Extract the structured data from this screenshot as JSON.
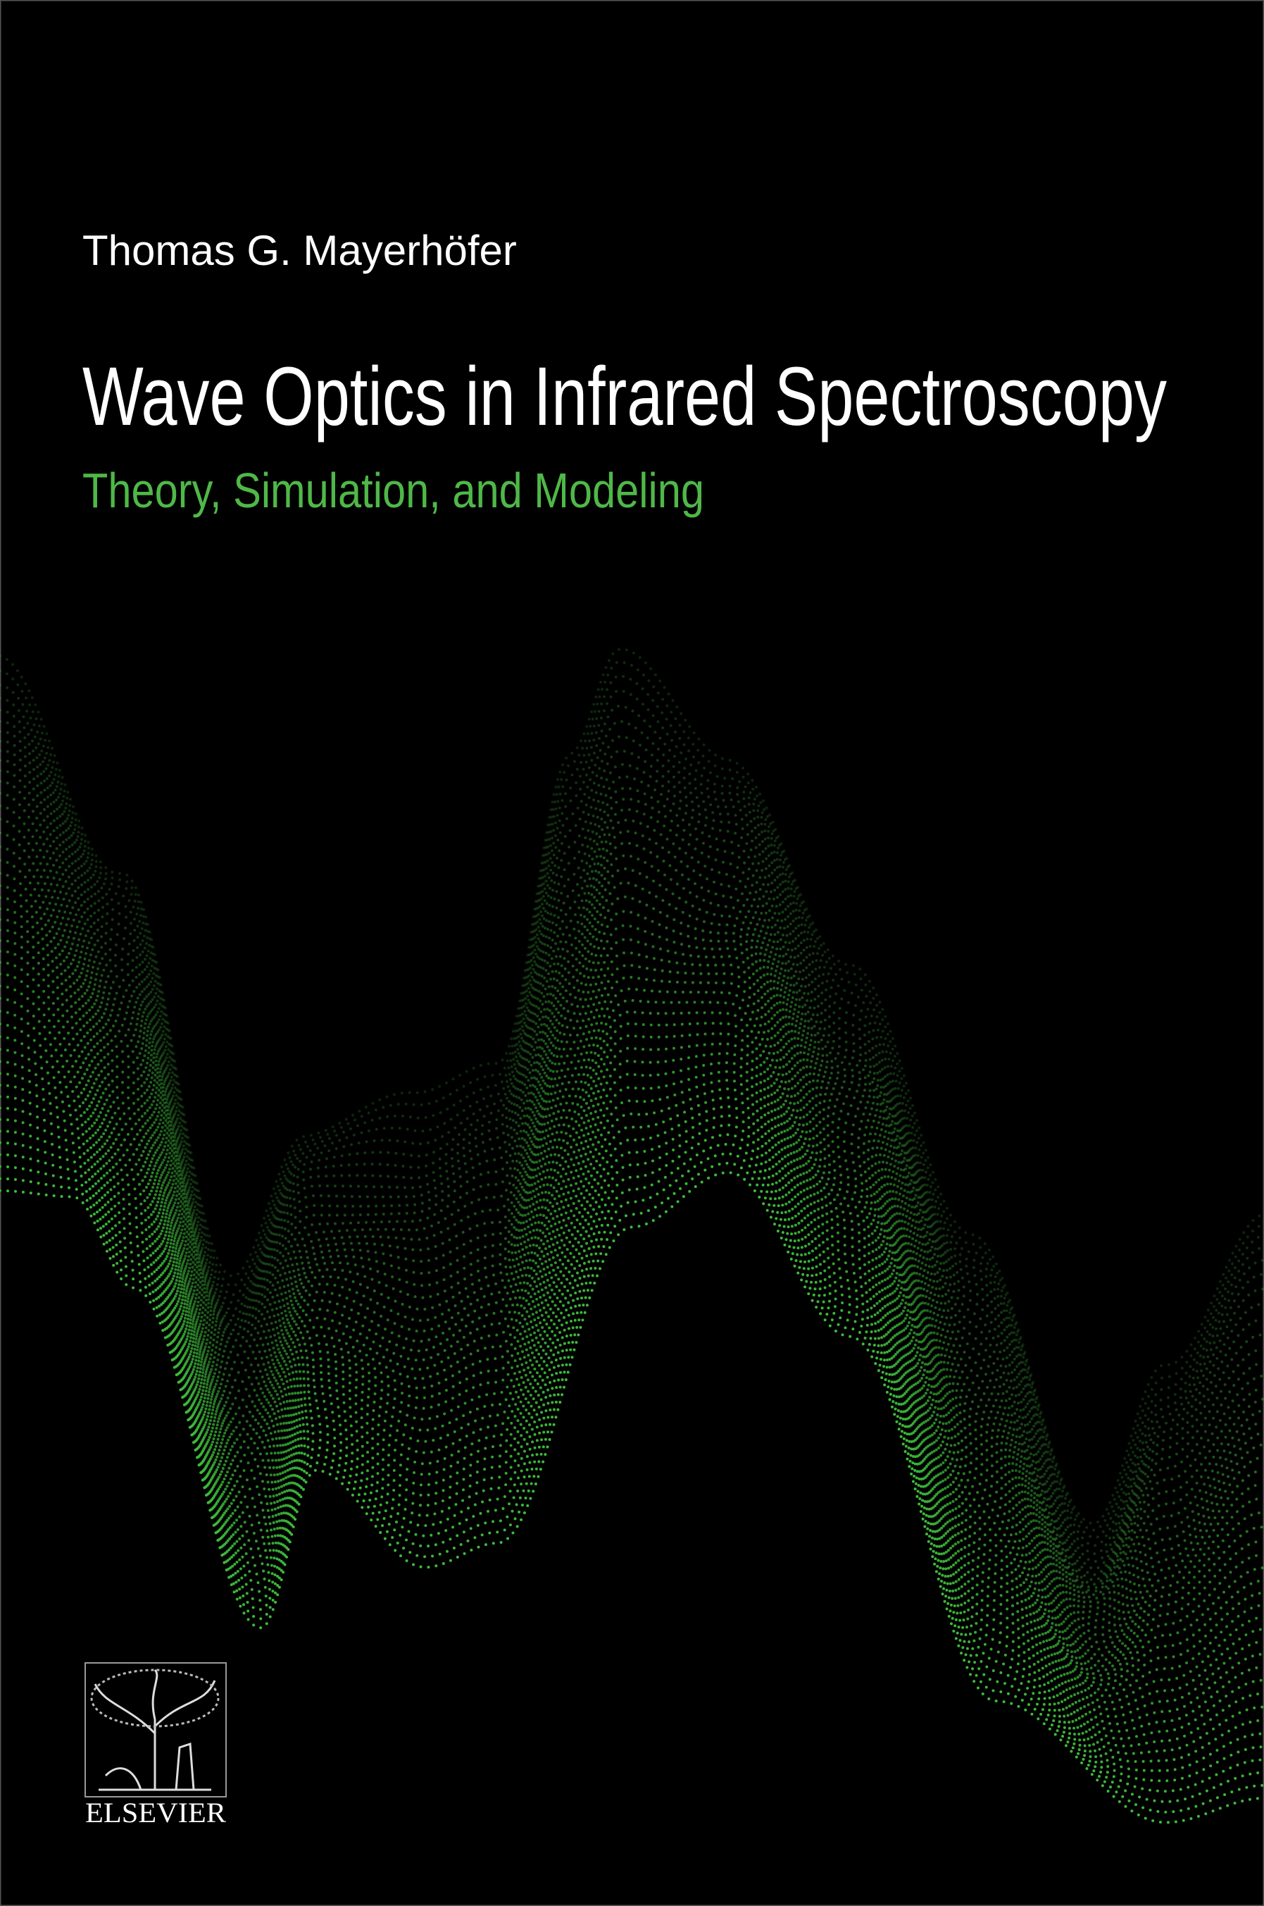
{
  "cover": {
    "author": "Thomas G. Mayerhöfer",
    "title": "Wave Optics in Infrared Spectroscopy",
    "subtitle": "Theory, Simulation, and Modeling",
    "publisher": "ELSEVIER"
  }
}
